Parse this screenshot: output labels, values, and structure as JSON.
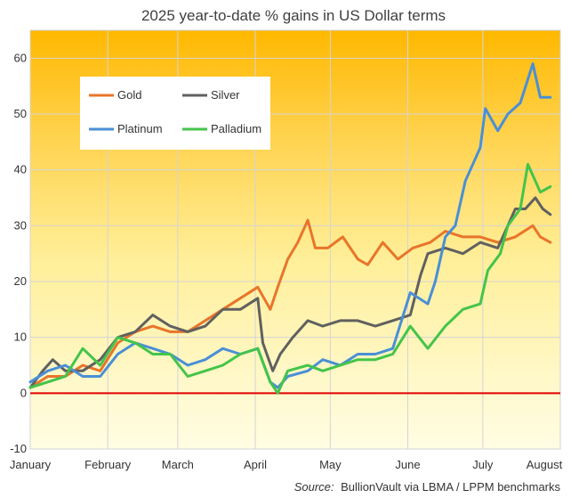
{
  "chart_data": {
    "type": "line",
    "title": "2025 year-to-date % gains in US Dollar terms",
    "xlabel": "",
    "ylabel": "",
    "x_ticks": [
      "January",
      "February",
      "March",
      "April",
      "May",
      "June",
      "July",
      "August"
    ],
    "x_domain": [
      "2025-01-01",
      "2025-08-01"
    ],
    "ylim": [
      -10,
      65
    ],
    "y_ticks": [
      -10,
      0,
      10,
      20,
      30,
      40,
      50,
      60
    ],
    "grid": true,
    "legend_position": "top-left",
    "reference_line": {
      "y": 0,
      "color": "#e00000"
    },
    "source": {
      "label": "Source:",
      "text": "BullionVault via LBMA / LPPM benchmarks"
    },
    "series": [
      {
        "name": "Gold",
        "color": "#e8752a",
        "points": [
          [
            "2025-01-01",
            1
          ],
          [
            "2025-01-08",
            3
          ],
          [
            "2025-01-15",
            3
          ],
          [
            "2025-01-22",
            5
          ],
          [
            "2025-01-29",
            4
          ],
          [
            "2025-02-05",
            9
          ],
          [
            "2025-02-12",
            11
          ],
          [
            "2025-02-19",
            12
          ],
          [
            "2025-02-26",
            11
          ],
          [
            "2025-03-05",
            11
          ],
          [
            "2025-03-12",
            13
          ],
          [
            "2025-03-19",
            15
          ],
          [
            "2025-03-26",
            17
          ],
          [
            "2025-04-02",
            19
          ],
          [
            "2025-04-07",
            15
          ],
          [
            "2025-04-10",
            19
          ],
          [
            "2025-04-14",
            24
          ],
          [
            "2025-04-18",
            27
          ],
          [
            "2025-04-22",
            31
          ],
          [
            "2025-04-25",
            26
          ],
          [
            "2025-04-30",
            26
          ],
          [
            "2025-05-06",
            28
          ],
          [
            "2025-05-12",
            24
          ],
          [
            "2025-05-16",
            23
          ],
          [
            "2025-05-22",
            27
          ],
          [
            "2025-05-28",
            24
          ],
          [
            "2025-06-03",
            26
          ],
          [
            "2025-06-10",
            27
          ],
          [
            "2025-06-16",
            29
          ],
          [
            "2025-06-23",
            28
          ],
          [
            "2025-06-30",
            28
          ],
          [
            "2025-07-07",
            27
          ],
          [
            "2025-07-14",
            28
          ],
          [
            "2025-07-21",
            30
          ],
          [
            "2025-07-24",
            28
          ],
          [
            "2025-07-28",
            27
          ]
        ]
      },
      {
        "name": "Silver",
        "color": "#606060",
        "points": [
          [
            "2025-01-01",
            1
          ],
          [
            "2025-01-06",
            4
          ],
          [
            "2025-01-10",
            6
          ],
          [
            "2025-01-15",
            4
          ],
          [
            "2025-01-22",
            4
          ],
          [
            "2025-01-29",
            6
          ],
          [
            "2025-02-05",
            10
          ],
          [
            "2025-02-12",
            11
          ],
          [
            "2025-02-19",
            14
          ],
          [
            "2025-02-26",
            12
          ],
          [
            "2025-03-05",
            11
          ],
          [
            "2025-03-12",
            12
          ],
          [
            "2025-03-19",
            15
          ],
          [
            "2025-03-26",
            15
          ],
          [
            "2025-04-02",
            17
          ],
          [
            "2025-04-04",
            9
          ],
          [
            "2025-04-08",
            4
          ],
          [
            "2025-04-11",
            7
          ],
          [
            "2025-04-16",
            10
          ],
          [
            "2025-04-22",
            13
          ],
          [
            "2025-04-28",
            12
          ],
          [
            "2025-05-05",
            13
          ],
          [
            "2025-05-12",
            13
          ],
          [
            "2025-05-19",
            12
          ],
          [
            "2025-05-26",
            13
          ],
          [
            "2025-06-02",
            14
          ],
          [
            "2025-06-06",
            21
          ],
          [
            "2025-06-09",
            25
          ],
          [
            "2025-06-16",
            26
          ],
          [
            "2025-06-23",
            25
          ],
          [
            "2025-06-30",
            27
          ],
          [
            "2025-07-07",
            26
          ],
          [
            "2025-07-11",
            30
          ],
          [
            "2025-07-14",
            33
          ],
          [
            "2025-07-18",
            33
          ],
          [
            "2025-07-22",
            35
          ],
          [
            "2025-07-25",
            33
          ],
          [
            "2025-07-28",
            32
          ]
        ]
      },
      {
        "name": "Platinum",
        "color": "#4a8fd6",
        "points": [
          [
            "2025-01-01",
            2
          ],
          [
            "2025-01-08",
            4
          ],
          [
            "2025-01-15",
            5
          ],
          [
            "2025-01-22",
            3
          ],
          [
            "2025-01-29",
            3
          ],
          [
            "2025-02-05",
            7
          ],
          [
            "2025-02-12",
            9
          ],
          [
            "2025-02-19",
            8
          ],
          [
            "2025-02-26",
            7
          ],
          [
            "2025-03-05",
            5
          ],
          [
            "2025-03-12",
            6
          ],
          [
            "2025-03-19",
            8
          ],
          [
            "2025-03-26",
            7
          ],
          [
            "2025-04-02",
            8
          ],
          [
            "2025-04-07",
            2
          ],
          [
            "2025-04-10",
            1
          ],
          [
            "2025-04-14",
            3
          ],
          [
            "2025-04-22",
            4
          ],
          [
            "2025-04-28",
            6
          ],
          [
            "2025-05-05",
            5
          ],
          [
            "2025-05-12",
            7
          ],
          [
            "2025-05-19",
            7
          ],
          [
            "2025-05-26",
            8
          ],
          [
            "2025-06-02",
            18
          ],
          [
            "2025-06-09",
            16
          ],
          [
            "2025-06-12",
            20
          ],
          [
            "2025-06-16",
            28
          ],
          [
            "2025-06-20",
            30
          ],
          [
            "2025-06-24",
            38
          ],
          [
            "2025-06-30",
            44
          ],
          [
            "2025-07-02",
            51
          ],
          [
            "2025-07-07",
            47
          ],
          [
            "2025-07-11",
            50
          ],
          [
            "2025-07-16",
            52
          ],
          [
            "2025-07-21",
            59
          ],
          [
            "2025-07-24",
            53
          ],
          [
            "2025-07-28",
            53
          ]
        ]
      },
      {
        "name": "Palladium",
        "color": "#44c44a",
        "points": [
          [
            "2025-01-01",
            1
          ],
          [
            "2025-01-08",
            2
          ],
          [
            "2025-01-15",
            3
          ],
          [
            "2025-01-22",
            8
          ],
          [
            "2025-01-29",
            5
          ],
          [
            "2025-02-05",
            10
          ],
          [
            "2025-02-12",
            9
          ],
          [
            "2025-02-19",
            7
          ],
          [
            "2025-02-26",
            7
          ],
          [
            "2025-03-05",
            3
          ],
          [
            "2025-03-12",
            4
          ],
          [
            "2025-03-19",
            5
          ],
          [
            "2025-03-26",
            7
          ],
          [
            "2025-04-02",
            8
          ],
          [
            "2025-04-07",
            2
          ],
          [
            "2025-04-10",
            0
          ],
          [
            "2025-04-14",
            4
          ],
          [
            "2025-04-22",
            5
          ],
          [
            "2025-04-28",
            4
          ],
          [
            "2025-05-05",
            5
          ],
          [
            "2025-05-12",
            6
          ],
          [
            "2025-05-19",
            6
          ],
          [
            "2025-05-26",
            7
          ],
          [
            "2025-06-02",
            12
          ],
          [
            "2025-06-09",
            8
          ],
          [
            "2025-06-16",
            12
          ],
          [
            "2025-06-23",
            15
          ],
          [
            "2025-06-30",
            16
          ],
          [
            "2025-07-03",
            22
          ],
          [
            "2025-07-08",
            25
          ],
          [
            "2025-07-11",
            30
          ],
          [
            "2025-07-16",
            33
          ],
          [
            "2025-07-19",
            41
          ],
          [
            "2025-07-24",
            36
          ],
          [
            "2025-07-28",
            37
          ]
        ]
      }
    ]
  }
}
